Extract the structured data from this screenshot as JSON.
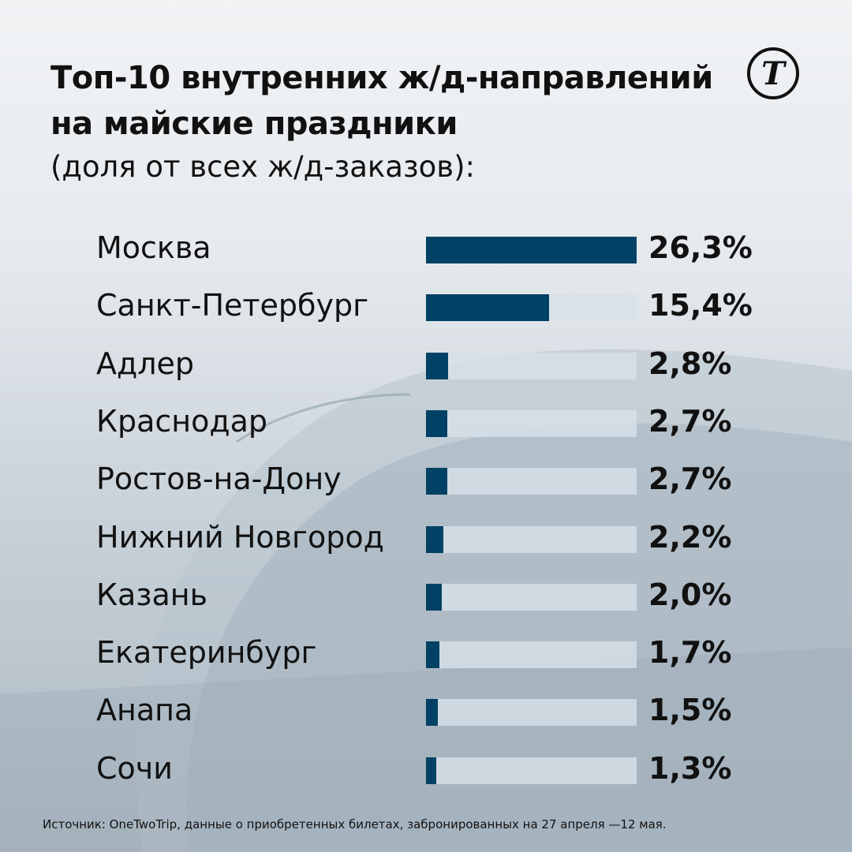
{
  "header": {
    "title_line1": "Топ-10 внутренних ж/д-направлений",
    "title_line2": "на майские праздники",
    "subtitle": "(доля от всех ж/д-заказов):",
    "logo": "Т"
  },
  "chart_data": {
    "type": "bar",
    "orientation": "horizontal",
    "title": "Топ-10 внутренних ж/д-направлений на майские праздники (доля от всех ж/д-заказов):",
    "categories": [
      "Москва",
      "Санкт-Петербург",
      "Адлер",
      "Краснодар",
      "Ростов-на-Дону",
      "Нижний Новгород",
      "Казань",
      "Екатеринбург",
      "Анапа",
      "Сочи"
    ],
    "values": [
      26.3,
      15.4,
      2.8,
      2.7,
      2.7,
      2.2,
      2.0,
      1.7,
      1.5,
      1.3
    ],
    "labels": [
      "26,3%",
      "15,4%",
      "2,8%",
      "2,7%",
      "2,7%",
      "2,2%",
      "2,0%",
      "1,7%",
      "1,5%",
      "1,3%"
    ],
    "xlim": [
      0,
      26.3
    ],
    "unit": "%",
    "bar_color": "#004165",
    "track_color": "#d7e1e8"
  },
  "footer": {
    "source": "Источник: OneTwoTrip, данные о приобретенных билетах, забронированных на 27 апреля —12 мая."
  }
}
